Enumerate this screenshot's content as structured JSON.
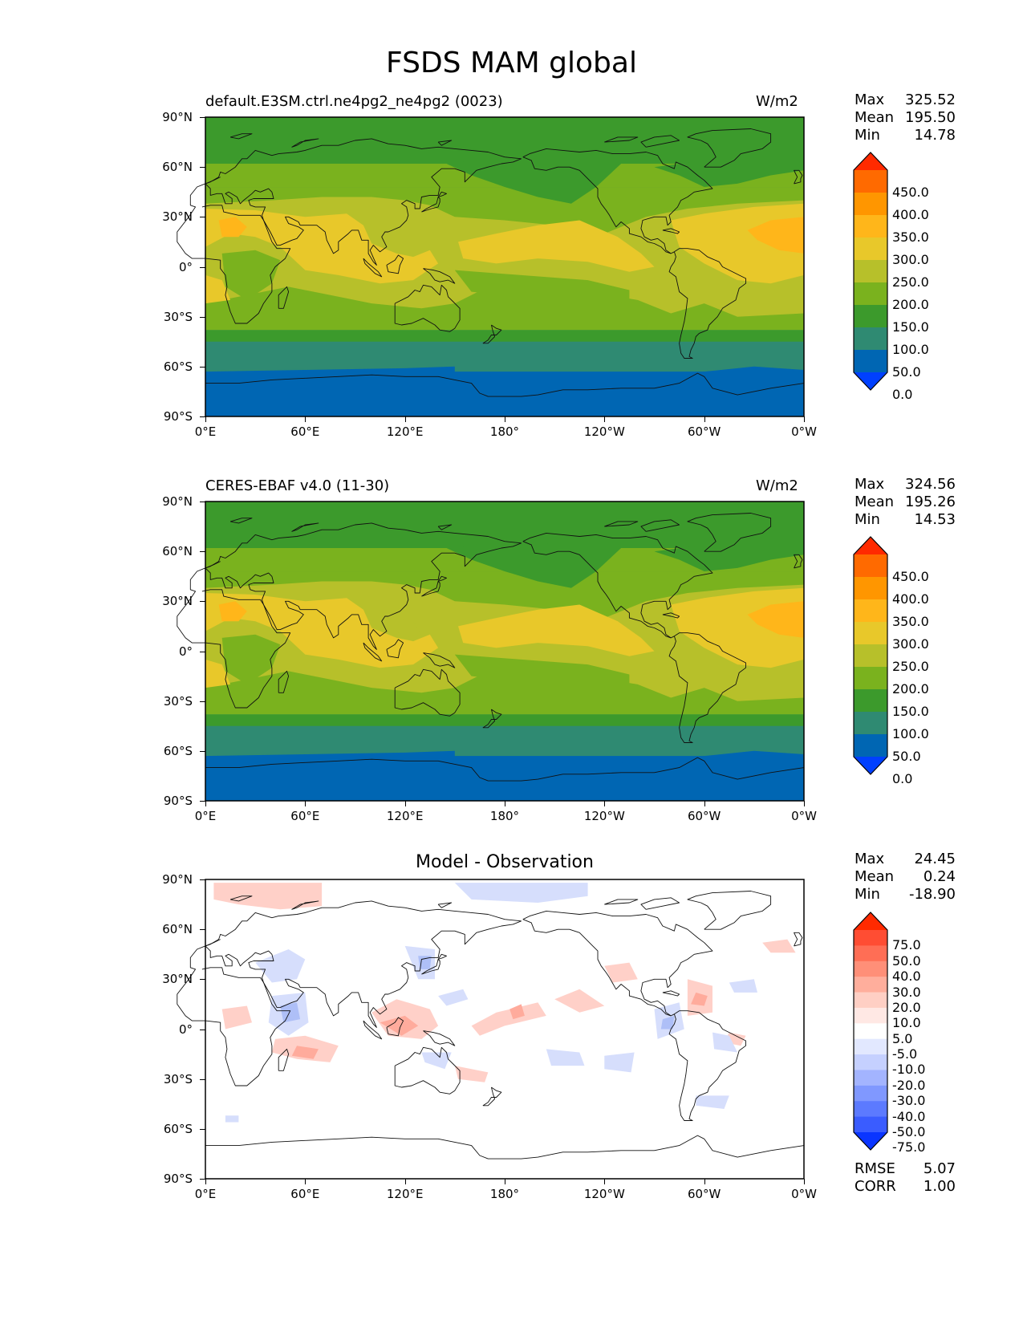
{
  "figure": {
    "title": "FSDS MAM global"
  },
  "axes": {
    "lat_ticks": [
      "90°N",
      "60°N",
      "30°N",
      "0°",
      "30°S",
      "60°S",
      "90°S"
    ],
    "lon_ticks": [
      "0°E",
      "60°E",
      "120°E",
      "180°",
      "120°W",
      "60°W",
      "0°W"
    ]
  },
  "panels": [
    {
      "id": "model",
      "title_left": "default.E3SM.ctrl.ne4pg2_ne4pg2 (0023)",
      "units": "W/m2",
      "stats": [
        {
          "label": "Max",
          "value": "325.52"
        },
        {
          "label": "Mean",
          "value": "195.50"
        },
        {
          "label": "Min",
          "value": "14.78"
        }
      ],
      "colorbar": {
        "labels": [
          "450.0",
          "400.0",
          "350.0",
          "300.0",
          "250.0",
          "200.0",
          "150.0",
          "100.0",
          "50.0",
          "0.0"
        ],
        "colors": [
          "#ff2a00",
          "#ff6a00",
          "#ff9600",
          "#ffb61a",
          "#e8c82a",
          "#b7c02a",
          "#7ab21e",
          "#3c9a2c",
          "#2f8a72",
          "#0066b3",
          "#0040ff"
        ]
      },
      "field_colors": {
        "c50": "#0066b3",
        "c100": "#2f8a72",
        "c150": "#3c9a2c",
        "c200": "#7ab21e",
        "c250": "#b7c02a",
        "c300": "#e8c82a",
        "c350": "#ffb61a"
      }
    },
    {
      "id": "obs",
      "title_left": "CERES-EBAF v4.0 (11-30)",
      "units": "W/m2",
      "stats": [
        {
          "label": "Max",
          "value": "324.56"
        },
        {
          "label": "Mean",
          "value": "195.26"
        },
        {
          "label": "Min",
          "value": "14.53"
        }
      ],
      "colorbar": {
        "labels": [
          "450.0",
          "400.0",
          "350.0",
          "300.0",
          "250.0",
          "200.0",
          "150.0",
          "100.0",
          "50.0",
          "0.0"
        ],
        "colors": [
          "#ff2a00",
          "#ff6a00",
          "#ff9600",
          "#ffb61a",
          "#e8c82a",
          "#b7c02a",
          "#7ab21e",
          "#3c9a2c",
          "#2f8a72",
          "#0066b3",
          "#0040ff"
        ]
      },
      "field_colors": {
        "c50": "#0066b3",
        "c100": "#2f8a72",
        "c150": "#3c9a2c",
        "c200": "#7ab21e",
        "c250": "#b7c02a",
        "c300": "#e8c82a",
        "c350": "#ffb61a"
      }
    },
    {
      "id": "diff",
      "title_center": "Model - Observation",
      "stats": [
        {
          "label": "Max",
          "value": "24.45"
        },
        {
          "label": "Mean",
          "value": "0.24"
        },
        {
          "label": "Min",
          "value": "-18.90"
        }
      ],
      "colorbar": {
        "labels": [
          "75.0",
          "50.0",
          "40.0",
          "30.0",
          "20.0",
          "10.0",
          "5.0",
          "-5.0",
          "-10.0",
          "-20.0",
          "-30.0",
          "-40.0",
          "-50.0",
          "-75.0"
        ],
        "colors": [
          "#ff2a00",
          "#ff4d33",
          "#ff6e55",
          "#ff8f78",
          "#ffae9c",
          "#ffcfc4",
          "#ffe8e4",
          "#ffffff",
          "#e2e8ff",
          "#c5d0ff",
          "#a3b4ff",
          "#8098ff",
          "#5c7aff",
          "#3a5cff",
          "#0a35ff"
        ]
      },
      "field_colors": {
        "pos": "#ffd0c8",
        "pos2": "#ffab9c",
        "neg": "#d6defc",
        "neg2": "#aebff7"
      },
      "footer": [
        {
          "label": "RMSE",
          "value": "5.07"
        },
        {
          "label": "CORR",
          "value": "1.00"
        }
      ]
    }
  ]
}
